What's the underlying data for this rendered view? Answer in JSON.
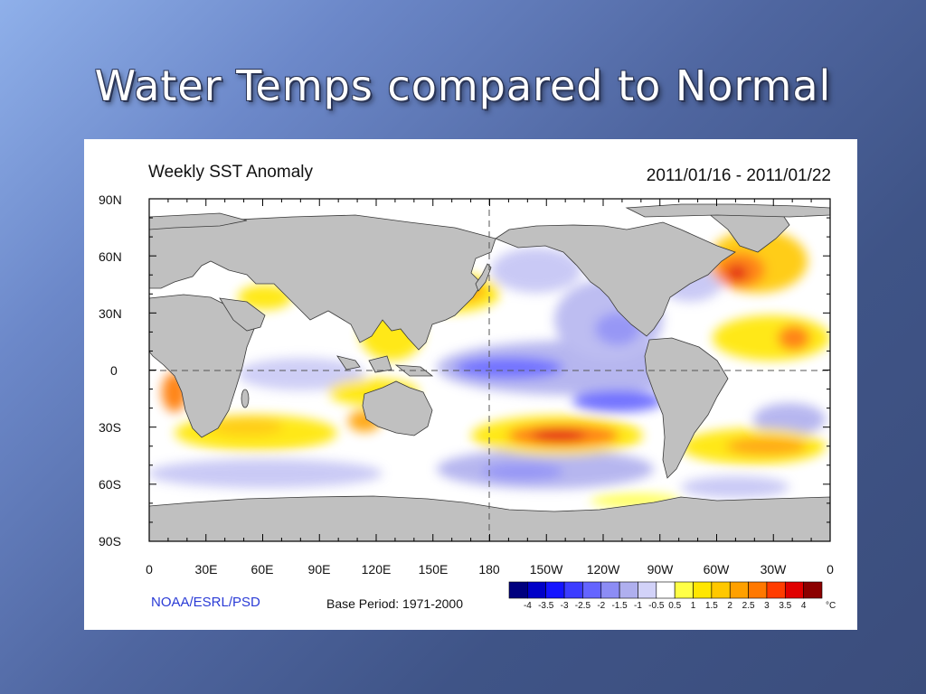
{
  "slide": {
    "title": "Water Temps compared to Normal"
  },
  "figure": {
    "title": "Weekly SST Anomaly",
    "date_range": "2011/01/16 - 2011/01/22",
    "credit": "NOAA/ESRL/PSD",
    "base_period": "Base Period: 1971-2000"
  },
  "axes": {
    "lat_labels": [
      "90N",
      "60N",
      "30N",
      "0",
      "30S",
      "60S",
      "90S"
    ],
    "lon_labels": [
      "0",
      "30E",
      "60E",
      "90E",
      "120E",
      "150E",
      "180",
      "150W",
      "120W",
      "90W",
      "60W",
      "30W",
      "0"
    ]
  },
  "legend": {
    "unit": "°C",
    "labels": [
      "-4",
      "-3.5",
      "-3",
      "-2.5",
      "-2",
      "-1.5",
      "-1",
      "-0.5",
      "0.5",
      "1",
      "1.5",
      "2",
      "2.5",
      "3",
      "3.5",
      "4"
    ],
    "colors": [
      "#00007f",
      "#0000c8",
      "#1414ff",
      "#3c3cff",
      "#6464ff",
      "#8c8cf5",
      "#afafee",
      "#d2d2f8",
      "#ffffff",
      "#ffff46",
      "#ffe600",
      "#ffc800",
      "#ffa000",
      "#ff7800",
      "#ff3c00",
      "#e00000",
      "#8c0000"
    ]
  },
  "colors": {
    "land": "#c0c0c0",
    "warm": "#ff3c00",
    "cool": "#1414ff"
  }
}
